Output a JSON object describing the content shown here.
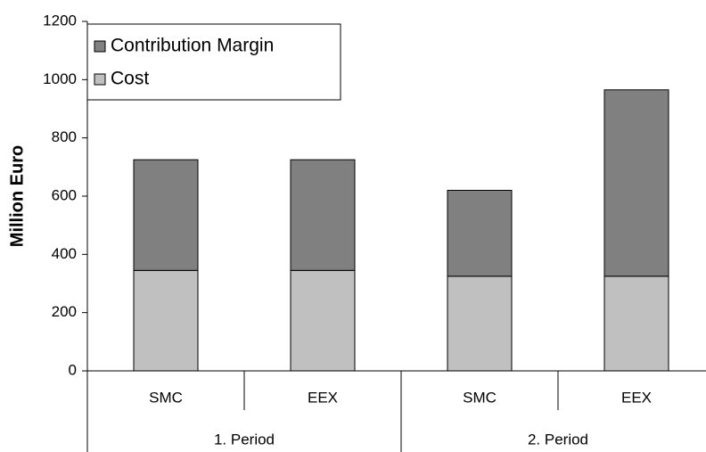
{
  "chart_data": {
    "type": "stacked-bar",
    "y_label": "Million Euro",
    "categories": [
      "SMC",
      "EEX",
      "SMC",
      "EEX"
    ],
    "groups": [
      "1. Period",
      "2. Period"
    ],
    "series": [
      {
        "name": "Cost",
        "color": "#c0c0c0",
        "values": [
          345,
          345,
          325,
          325
        ]
      },
      {
        "name": "Contribution Margin",
        "color": "#808080",
        "values": [
          380,
          380,
          295,
          640
        ]
      }
    ],
    "ylim": [
      0,
      1200
    ],
    "yticks": [
      0,
      200,
      400,
      600,
      800,
      1000,
      1200
    ],
    "legend": "upper left"
  }
}
